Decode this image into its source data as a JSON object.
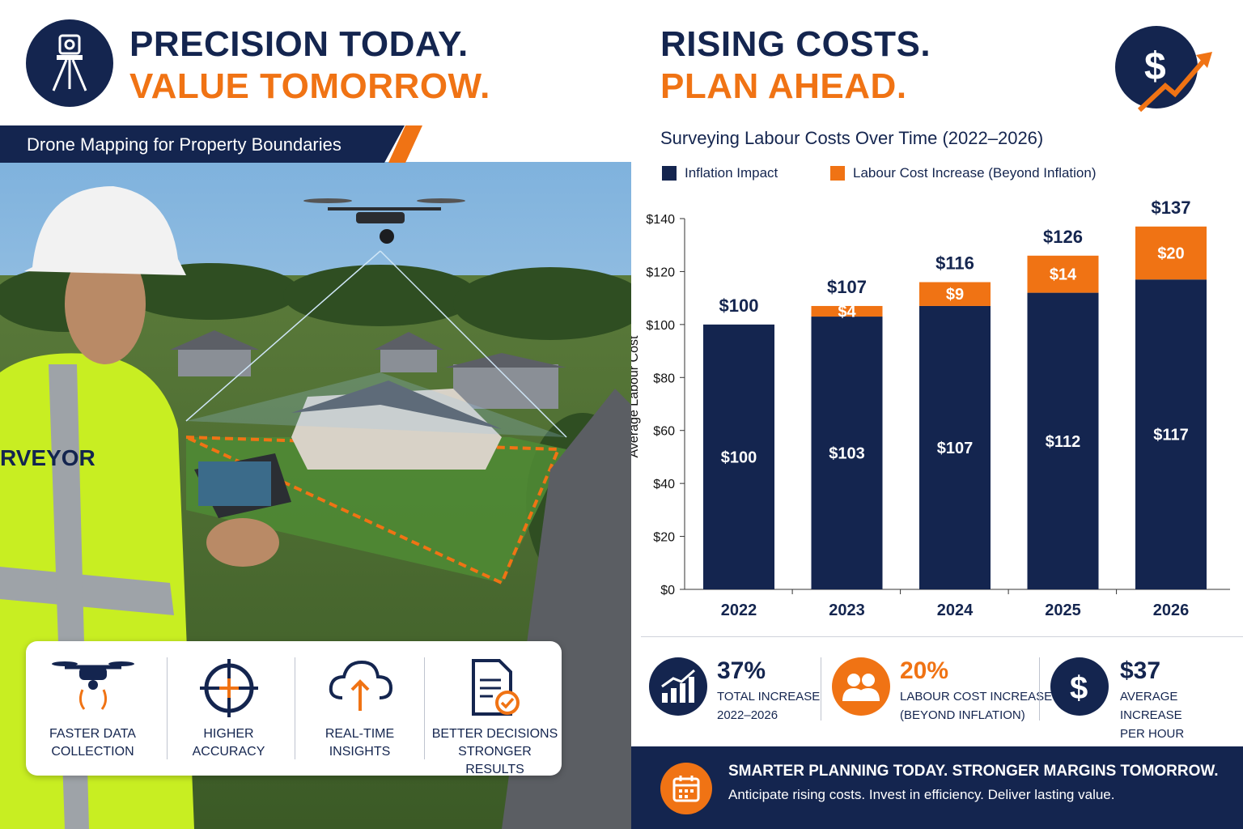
{
  "left": {
    "headline_line1": "PRECISION TODAY.",
    "headline_line2": "VALUE TOMORROW.",
    "ribbon_text": "Drone Mapping for Property Boundaries",
    "vest_text": "RVEYOR",
    "features": [
      {
        "icon": "drone-icon",
        "label_line1": "FASTER DATA",
        "label_line2": "COLLECTION"
      },
      {
        "icon": "crosshair-icon",
        "label_line1": "HIGHER",
        "label_line2": "ACCURACY"
      },
      {
        "icon": "cloud-upload-icon",
        "label_line1": "REAL-TIME",
        "label_line2": "INSIGHTS"
      },
      {
        "icon": "document-check-icon",
        "label_line1": "BETTER DECISIONS",
        "label_line2": "STRONGER RESULTS"
      }
    ]
  },
  "right": {
    "headline_line1": "RISING COSTS.",
    "headline_line2": "PLAN AHEAD.",
    "stats": [
      {
        "icon": "chart-growth-icon",
        "value": "37%",
        "label_line1": "TOTAL INCREASE",
        "label_line2": "2022–2026",
        "color": "#14254f"
      },
      {
        "icon": "people-icon",
        "value": "20%",
        "label_line1": "LABOUR COST INCREASE",
        "label_line2": "(BEYOND INFLATION)",
        "color": "#f07314"
      },
      {
        "icon": "dollar-icon",
        "value": "$37",
        "label_line1": "AVERAGE INCREASE",
        "label_line2": "PER HOUR",
        "color": "#14254f"
      }
    ],
    "footer": {
      "title": "SMARTER PLANNING TODAY. STRONGER MARGINS TOMORROW.",
      "subtitle": "Anticipate rising costs. Invest in efficiency. Deliver lasting value."
    }
  },
  "colors": {
    "navy": "#14254f",
    "orange": "#f07314"
  },
  "chart_data": {
    "type": "bar",
    "stacked": true,
    "title": "Surveying Labour Costs Over Time (2022–2026)",
    "ylabel": "Average Labour Cost",
    "xlabel": "",
    "ylim": [
      0,
      140
    ],
    "yticks": [
      0,
      20,
      40,
      60,
      80,
      100,
      120,
      140
    ],
    "ytick_labels": [
      "$0",
      "$20",
      "$40",
      "$60",
      "$80",
      "$100",
      "$120",
      "$140"
    ],
    "legend_position": "top-left",
    "categories": [
      "2022",
      "2023",
      "2024",
      "2025",
      "2026"
    ],
    "series": [
      {
        "name": "Inflation Impact",
        "color": "#14254f",
        "values": [
          100,
          103,
          107,
          112,
          117
        ],
        "labels": [
          "$100",
          "$103",
          "$107",
          "$112",
          "$117"
        ]
      },
      {
        "name": "Labour Cost Increase (Beyond Inflation)",
        "color": "#f07314",
        "values": [
          0,
          4,
          9,
          14,
          20
        ],
        "labels": [
          "",
          "$4",
          "$9",
          "$14",
          "$20"
        ]
      }
    ],
    "totals": [
      100,
      107,
      116,
      126,
      137
    ],
    "total_labels": [
      "$100",
      "$107",
      "$116",
      "$126",
      "$137"
    ]
  }
}
